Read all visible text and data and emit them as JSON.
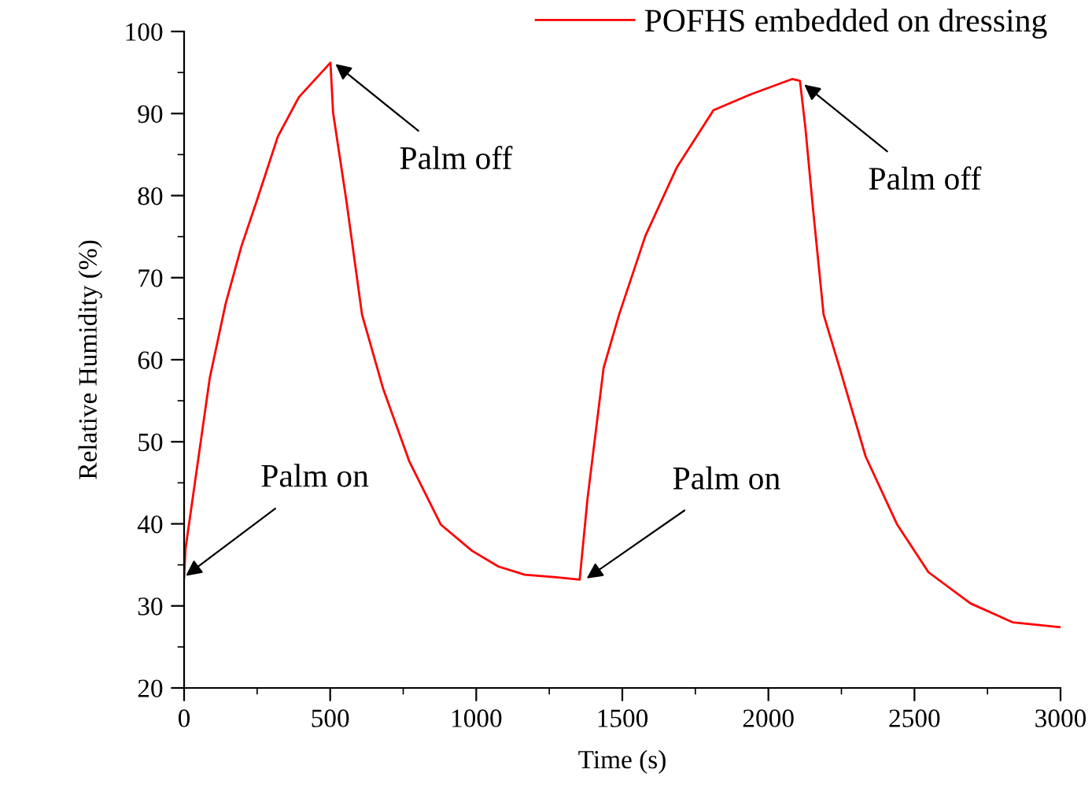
{
  "chart_data": {
    "type": "line",
    "xlabel": "Time (s)",
    "ylabel": "Relative Humidity (%)",
    "xlim": [
      0,
      3000
    ],
    "xticks": [
      0,
      500,
      1000,
      1500,
      2000,
      2500,
      3000
    ],
    "ylim": [
      20,
      100
    ],
    "yticks": [
      20,
      30,
      40,
      50,
      60,
      70,
      80,
      90,
      100
    ],
    "grid": false,
    "legend": "top right",
    "marker": "none",
    "line_style": "solid",
    "series": [
      {
        "name": "POFHS embedded on dressing",
        "color": "#ff0000",
        "x": [
          0,
          5,
          88,
          142,
          196,
          250,
          321,
          393,
          501,
          510,
          555,
          609,
          681,
          771,
          879,
          986,
          1076,
          1166,
          1274,
          1354,
          1381,
          1436,
          1489,
          1579,
          1686,
          1812,
          1937,
          2081,
          2108,
          2126,
          2153,
          2189,
          2243,
          2333,
          2441,
          2548,
          2692,
          2836,
          2997
        ],
        "values": [
          33.5,
          37,
          57.8,
          66.8,
          73.8,
          79.5,
          87.2,
          92,
          96.2,
          90.1,
          79.5,
          65.5,
          56.5,
          47.6,
          39.9,
          36.7,
          34.8,
          33.8,
          33.5,
          33.2,
          43.1,
          59,
          65.5,
          75.1,
          83.4,
          90.4,
          92.3,
          94.2,
          94,
          88.5,
          78.3,
          65.5,
          59.1,
          48.2,
          39.9,
          34.1,
          30.3,
          28,
          27.4
        ]
      }
    ],
    "annotations": [
      {
        "text": "Palm on",
        "x": 0,
        "y": 33.5
      },
      {
        "text": "Palm off",
        "x": 512,
        "y": 96.2
      },
      {
        "text": "Palm on",
        "x": 1372,
        "y": 33.2
      },
      {
        "text": "Palm off",
        "x": 2117,
        "y": 93.7
      }
    ]
  }
}
